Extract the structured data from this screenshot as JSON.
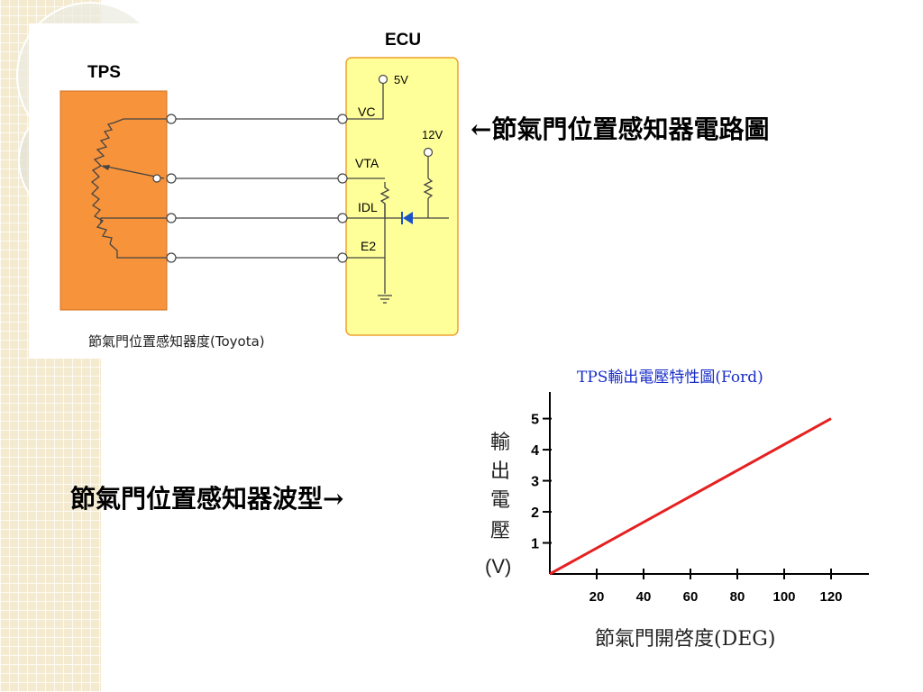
{
  "circuit": {
    "ecu_label": "ECU",
    "tps_label": "TPS",
    "v5_label": "5V",
    "v12_label": "12V",
    "pins": {
      "vc": "VC",
      "vta": "VTA",
      "idl": "IDL",
      "e2": "E2"
    },
    "caption": "節氣門位置感知器度(Toyota)",
    "colors": {
      "tps_box": "#f7933a",
      "ecu_box": "#ffff99",
      "ecu_border": "#f0a030",
      "diode": "#1a50c8"
    }
  },
  "notes": {
    "circuit_note": "←節氣門位置感知器電路圖",
    "waveform_note": "節氣門位置感知器波型→"
  },
  "chart_data": {
    "type": "line",
    "title": "TPS輸出電壓特性圖(Ford)",
    "xlabel": "節氣門開啓度(DEG)",
    "ylabel": "輸出電壓(V)",
    "ylabel_chars": [
      "輸",
      "出",
      "電",
      "壓"
    ],
    "ylabel_unit": "(V)",
    "xlim": [
      0,
      130
    ],
    "ylim": [
      0,
      5.8
    ],
    "x_ticks": [
      20,
      40,
      60,
      80,
      100,
      120
    ],
    "y_ticks": [
      1,
      2,
      3,
      4,
      5
    ],
    "series": [
      {
        "x": [
          0,
          120
        ],
        "y": [
          0,
          5
        ],
        "color": "#e62020"
      }
    ],
    "title_color": "#1a2ec8"
  }
}
